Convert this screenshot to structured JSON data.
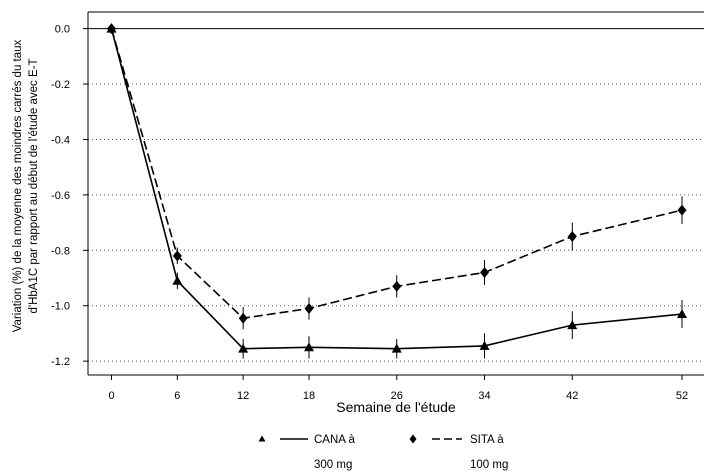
{
  "chart_data": {
    "type": "line",
    "xlabel": "Semaine de l'étude",
    "ylabel_lines": [
      "Variation (%) de la moyenne des moindres carrés du taux",
      "d'HbA1C par rapport au début de l'étude avec E-T"
    ],
    "x_ticks": [
      "0",
      "6",
      "12",
      "18",
      "26",
      "34",
      "42",
      "52"
    ],
    "y_ticks": [
      "0.0",
      "-0.2",
      "-0.4",
      "-0.6",
      "-0.8",
      "-1.0",
      "-1.2"
    ],
    "ylim": [
      -1.25,
      0.06
    ],
    "grid": "horizontal dotted",
    "legend_position": "bottom",
    "series": [
      {
        "name_lines": [
          "CANA à",
          "300 mg"
        ],
        "marker": "triangle",
        "line_style": "solid",
        "color": "#000000",
        "values": [
          0.0,
          -0.91,
          -1.155,
          -1.15,
          -1.155,
          -1.145,
          -1.07,
          -1.03
        ],
        "errors": [
          0.0,
          0.03,
          0.035,
          0.04,
          0.035,
          0.045,
          0.05,
          0.05
        ]
      },
      {
        "name_lines": [
          "SITA à",
          "100 mg"
        ],
        "marker": "diamond",
        "line_style": "dashed",
        "color": "#000000",
        "values": [
          0.0,
          -0.82,
          -1.045,
          -1.01,
          -0.93,
          -0.88,
          -0.75,
          -0.655
        ],
        "errors": [
          0.0,
          0.03,
          0.04,
          0.04,
          0.04,
          0.045,
          0.05,
          0.05
        ]
      }
    ]
  }
}
